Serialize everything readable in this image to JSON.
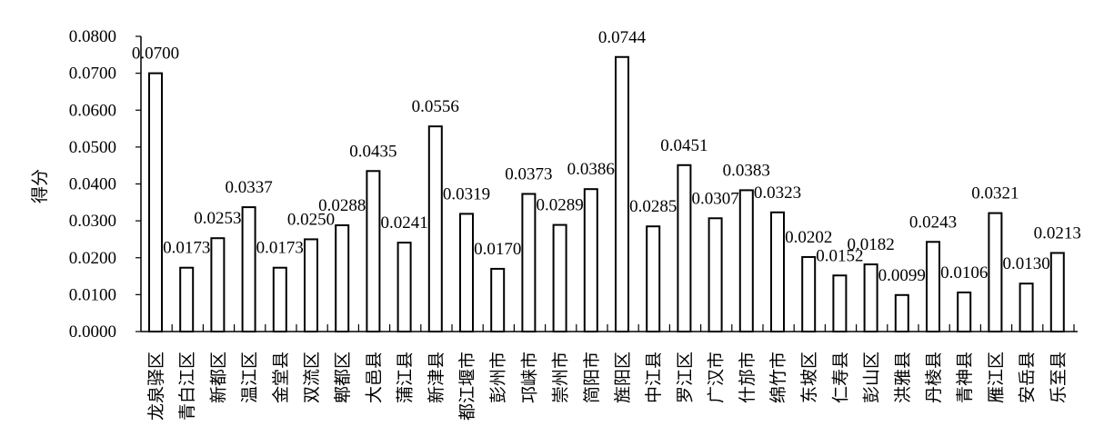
{
  "chart_data": {
    "type": "bar",
    "ylabel": "得分",
    "ylim": [
      0,
      0.08
    ],
    "yticks": [
      "0.0000",
      "0.0100",
      "0.0200",
      "0.0300",
      "0.0400",
      "0.0500",
      "0.0600",
      "0.0700",
      "0.0800"
    ],
    "grid": false,
    "legend": "none",
    "bar_fill": "#ffffff",
    "bar_stroke": "#000000",
    "categories": [
      "龙泉驿区",
      "青白江区",
      "新都区",
      "温江区",
      "金堂县",
      "双流区",
      "郫都区",
      "大邑县",
      "蒲江县",
      "新津县",
      "都江堰市",
      "彭州市",
      "邛崃市",
      "崇州市",
      "简阳市",
      "旌阳区",
      "中江县",
      "罗江区",
      "广汉市",
      "什邡市",
      "绵竹市",
      "东坡区",
      "仁寿县",
      "彭山区",
      "洪雅县",
      "丹棱县",
      "青神县",
      "雁江区",
      "安岳县",
      "乐至县"
    ],
    "values": [
      0.07,
      0.0173,
      0.0253,
      0.0337,
      0.0173,
      0.025,
      0.0288,
      0.0435,
      0.0241,
      0.0556,
      0.0319,
      0.017,
      0.0373,
      0.0289,
      0.0386,
      0.0744,
      0.0285,
      0.0451,
      0.0307,
      0.0383,
      0.0323,
      0.0202,
      0.0152,
      0.0182,
      0.0099,
      0.0243,
      0.0106,
      0.0321,
      0.013,
      0.0213
    ],
    "labels": [
      "0.0700",
      "0.0173",
      "0.0253",
      "0.0337",
      "0.0173",
      "0.0250",
      "0.0288",
      "0.0435",
      "0.0241",
      "0.0556",
      "0.0319",
      "0.0170",
      "0.0373",
      "0.0289",
      "0.0386",
      "0.0744",
      "0.0285",
      "0.0451",
      "0.0307",
      "0.0383",
      "0.0323",
      "0.0202",
      "0.0152",
      "0.0182",
      "0.0099",
      "0.0243",
      "0.0106",
      "0.0321",
      "0.0130",
      "0.0213"
    ]
  }
}
